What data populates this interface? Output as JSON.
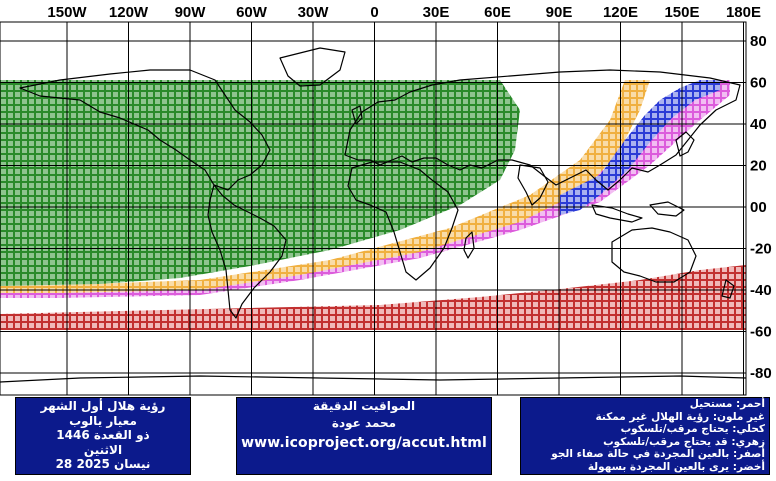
{
  "map": {
    "lon_labels": [
      "150W",
      "120W",
      "90W",
      "60W",
      "30W",
      "0",
      "30E",
      "60E",
      "90E",
      "120E",
      "150E",
      "180E"
    ],
    "lat_labels": [
      "80",
      "60",
      "40",
      "20",
      "00",
      "-20",
      "-40",
      "-60",
      "-80"
    ],
    "colors": {
      "green": "#1f7a1f",
      "yellow": "#f2b64d",
      "magenta": "#e066e0",
      "blue": "#2b3bd6",
      "red": "#c23030",
      "grid": "#000000",
      "coast": "#000000"
    }
  },
  "panels": {
    "left": {
      "line1": "رؤية هلال أول الشهر",
      "line2": "معيار يالوب",
      "line3": "ذو القعدة 1446",
      "line4": "الاثنين",
      "line5": "نيسان 2025 28"
    },
    "middle": {
      "line1": "المواقيت الدقيقة",
      "line2": "محمد عودة",
      "url": "www.icoproject.org/accut.html"
    },
    "right": {
      "line1": "أحمر: مستحيل",
      "line2": "غير ملون: رؤية الهلال غير ممكنة",
      "line3": "كحلي: يحتاج مرقب/تلسكوب",
      "line4": "زهري: قد يحتاج مرقب/تلسكوب",
      "line5": "أصفر: بالعين المجردة في حالة صفاء الجو",
      "line6": "أخضر: يرى بالعين المجردة بسهولة"
    }
  }
}
